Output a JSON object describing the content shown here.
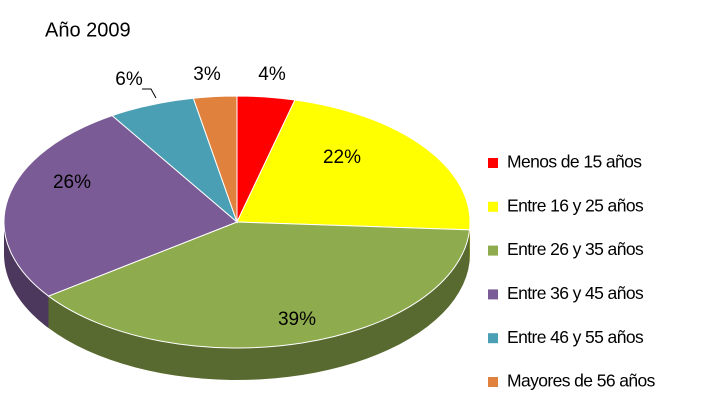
{
  "chart_data": {
    "type": "pie",
    "title": "Año 2009",
    "categories": [
      "Menos de 15 años",
      "Entre 16 y 25 años",
      "Entre 26 y 35 años",
      "Entre 36 y 45 años",
      "Entre 46 y 55 años",
      "Mayores de 56 años"
    ],
    "values": [
      4,
      22,
      39,
      26,
      6,
      3
    ],
    "value_labels": [
      "4%",
      "22%",
      "39%",
      "26%",
      "6%",
      "3%"
    ],
    "colors": [
      "#ff0000",
      "#ffff00",
      "#8eab4d",
      "#7a5b95",
      "#4a9fb4",
      "#e0823e"
    ],
    "legend": "right"
  }
}
